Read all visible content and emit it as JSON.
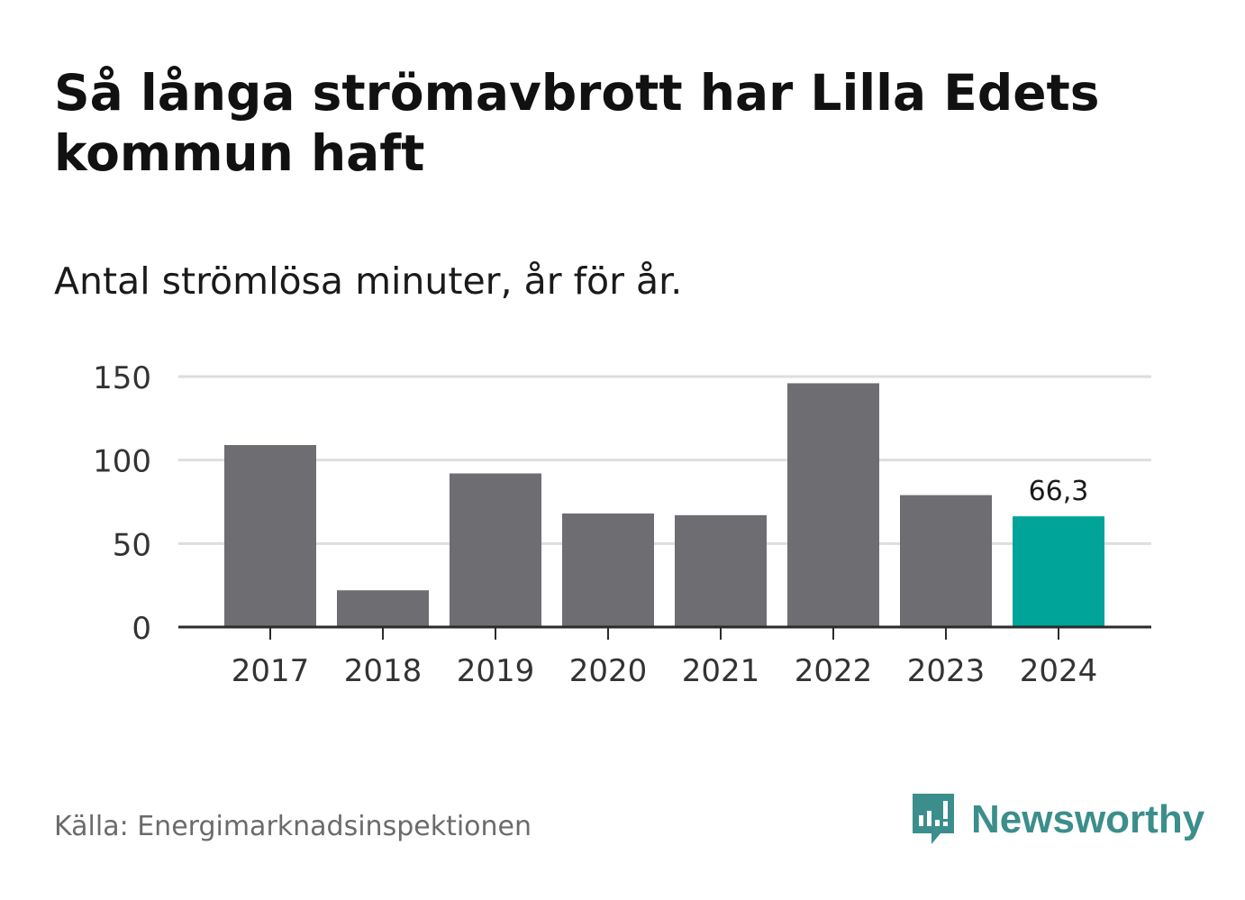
{
  "title": "Så långa strömavbrott har Lilla Edets kommun haft",
  "subtitle": "Antal strömlösa minuter, år för år.",
  "source": "Källa: Energimarknadsinspektionen",
  "brand": {
    "name": "Newsworthy",
    "color": "#3b8e8b"
  },
  "colors": {
    "bar": "#6e6d72",
    "highlight": "#00a499",
    "grid": "#dedede",
    "axis": "#2b2b2b"
  },
  "chart_data": {
    "type": "bar",
    "title": "Så långa strömavbrott har Lilla Edets kommun haft",
    "subtitle": "Antal strömlösa minuter, år för år.",
    "categories": [
      "2017",
      "2018",
      "2019",
      "2020",
      "2021",
      "2022",
      "2023",
      "2024"
    ],
    "values": [
      109,
      22,
      92,
      68,
      67,
      146,
      79,
      66.3
    ],
    "highlight_index": 7,
    "data_labels": [
      {
        "index": 7,
        "text": "66,3"
      }
    ],
    "yticks": [
      0,
      50,
      100,
      150
    ],
    "ylim": [
      0,
      150
    ],
    "xlabel": "",
    "ylabel": "",
    "grid": true,
    "legend": "none"
  }
}
